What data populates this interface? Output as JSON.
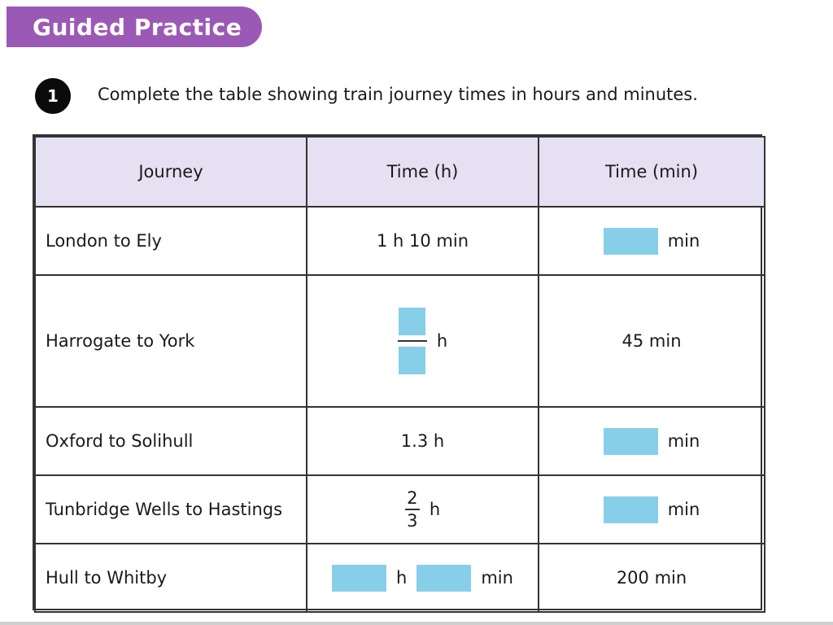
{
  "banner": {
    "title": "Guided Practice"
  },
  "question": {
    "number": "1",
    "text": "Complete the table showing train journey times in hours and minutes."
  },
  "table": {
    "headers": [
      "Journey",
      "Time (h)",
      "Time (min)"
    ],
    "rows": [
      {
        "journey": "London to Ely",
        "time_h": "1 h 10 min",
        "time_min_unit": "min"
      },
      {
        "journey": "Harrogate to York",
        "time_h_unit": "h",
        "time_min": "45 min"
      },
      {
        "journey": "Oxford to Solihull",
        "time_h": "1.3 h",
        "time_min_unit": "min"
      },
      {
        "journey": "Tunbridge Wells to Hastings",
        "time_h_num": "2",
        "time_h_den": "3",
        "time_h_unit": "h",
        "time_min_unit": "min"
      },
      {
        "journey": "Hull to Whitby",
        "time_h_unit1": "h",
        "time_h_unit2": "min",
        "time_min": "200 min"
      }
    ]
  },
  "colors": {
    "banner": "#9b59b6",
    "header_bg": "#e6e0f3",
    "answer_box": "#87cfe9"
  }
}
